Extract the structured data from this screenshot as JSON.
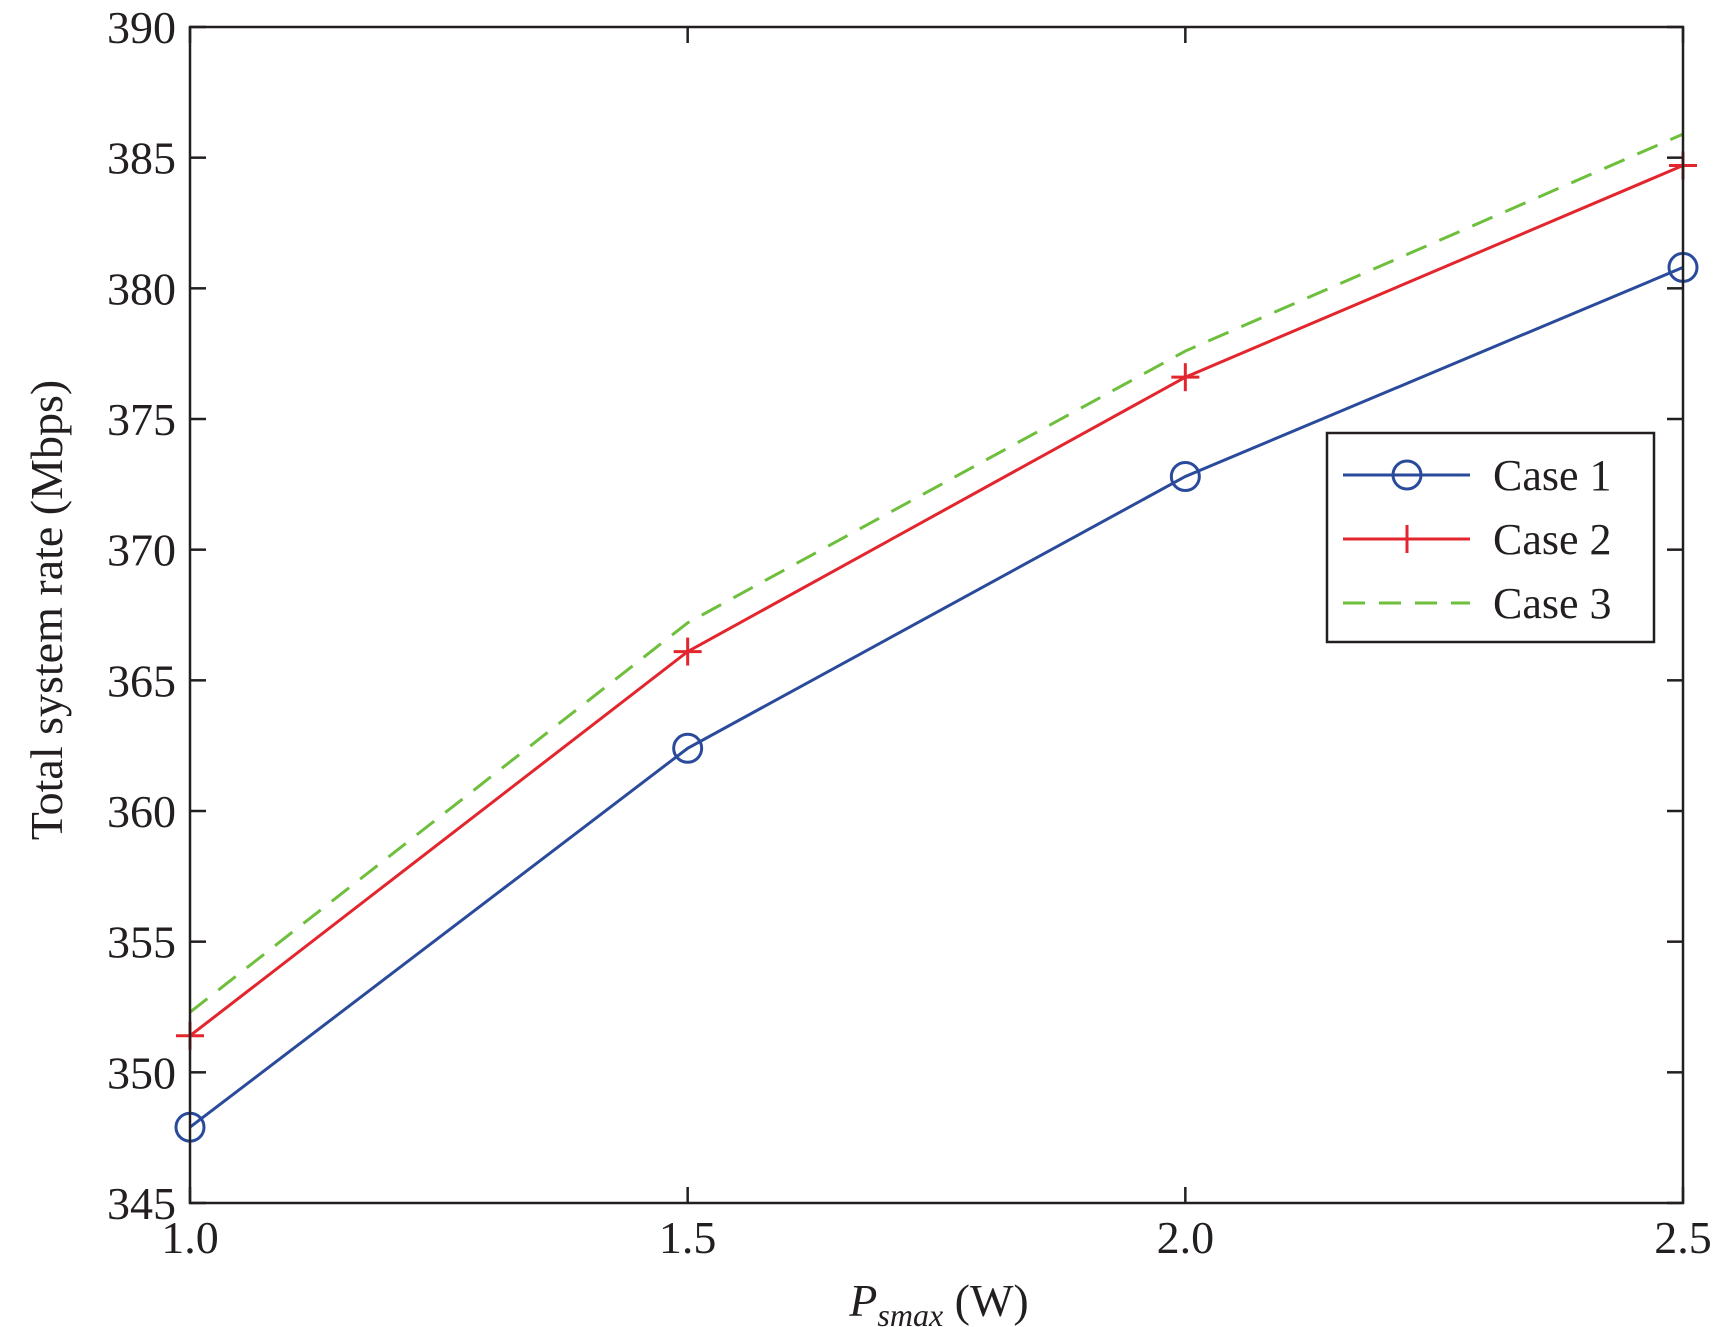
{
  "chart_data": {
    "type": "line",
    "title": "",
    "xlabel": {
      "symbol": "P",
      "subscript": "smax",
      "unit": " (W)"
    },
    "ylabel": "Total system rate (Mbps)",
    "x": [
      1.0,
      1.5,
      2.0,
      2.5
    ],
    "xticks": [
      "1.0",
      "1.5",
      "2.0",
      "2.5"
    ],
    "yticks": [
      "345",
      "350",
      "355",
      "360",
      "365",
      "370",
      "375",
      "380",
      "385",
      "390"
    ],
    "xlim": [
      1.0,
      2.5
    ],
    "ylim": [
      345,
      390
    ],
    "grid": false,
    "legend_position": "right",
    "series": [
      {
        "name": "Case 1",
        "values": [
          347.9,
          362.4,
          372.8,
          380.8
        ],
        "color": "#2a4b9b",
        "line_style": "solid",
        "marker": "circle"
      },
      {
        "name": "Case 2",
        "values": [
          351.4,
          366.1,
          376.6,
          384.7
        ],
        "color": "#e3262d",
        "line_style": "solid",
        "marker": "plus"
      },
      {
        "name": "Case 3",
        "values": [
          352.3,
          367.2,
          377.6,
          385.9
        ],
        "color": "#6dbf3c",
        "line_style": "dashed",
        "marker": "none"
      }
    ]
  }
}
